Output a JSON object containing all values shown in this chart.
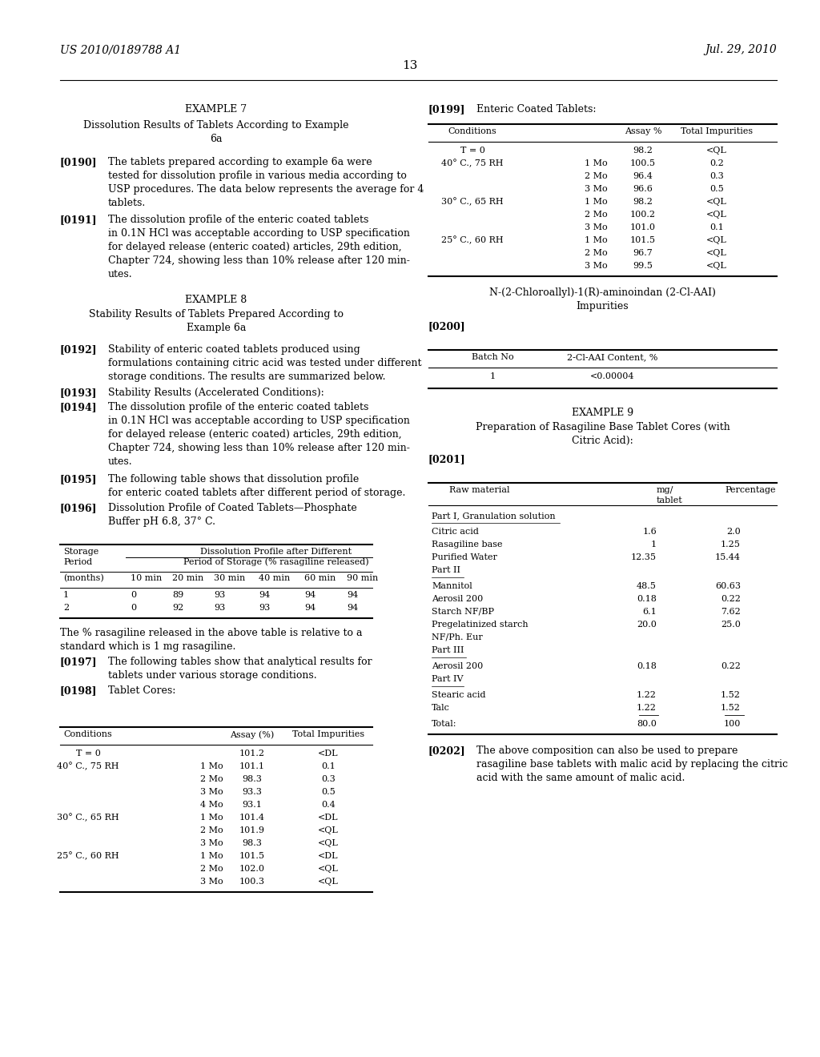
{
  "background_color": "#ffffff",
  "page_header_left": "US 2010/0189788 A1",
  "page_header_right": "Jul. 29, 2010",
  "page_number": "13"
}
